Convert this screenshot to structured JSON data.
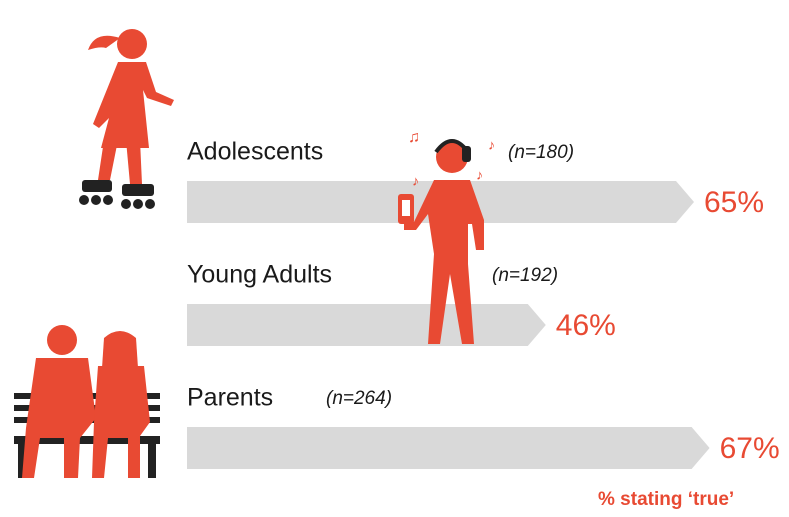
{
  "chart_data": {
    "type": "arrow-bar",
    "categories": [
      "Adolescents",
      "Young Adults",
      "Parents"
    ],
    "values": [
      65,
      46,
      67
    ],
    "value_labels": [
      "65%",
      "46%",
      "67%"
    ],
    "sample_sizes": [
      "(n=180)",
      "(n=192)",
      "(n=264)"
    ],
    "footnote": "% stating ‘true’",
    "color": "#d9d9d9",
    "label_color": "#e84a33"
  }
}
